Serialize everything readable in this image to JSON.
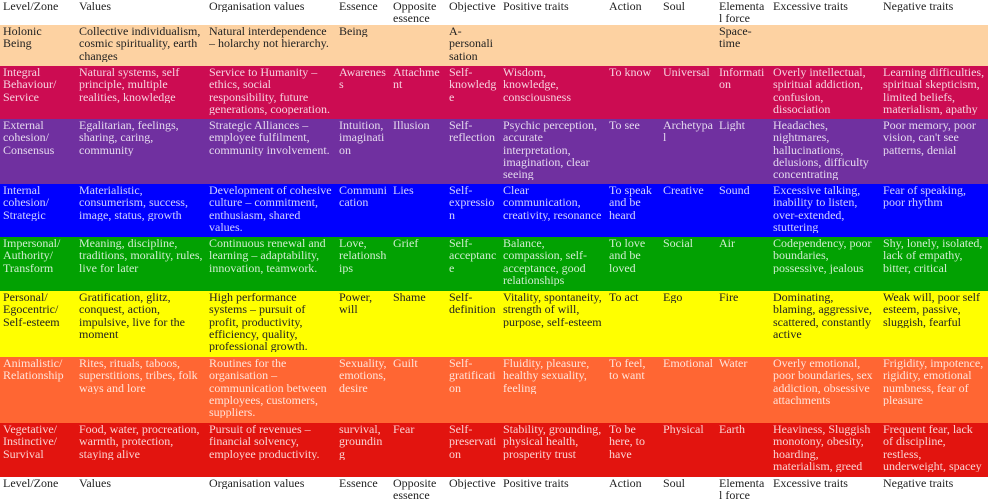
{
  "table": {
    "header": [
      "Level/Zone",
      "Values",
      "Organisation values",
      "Essence",
      "Opposite essence",
      "Objective",
      "Positive traits",
      "Action",
      "Soul",
      "Elemental force",
      "Excessive traits",
      "Negative traits"
    ],
    "rows": [
      [
        "Holonic Being",
        "Collective individualism, cosmic spirituality, earth changes",
        "Natural interdependence – holarchy not hierarchy.",
        "Being",
        null,
        "A-personalisation",
        null,
        null,
        null,
        "Space-time",
        null,
        null
      ],
      [
        "Integral Behaviour/ Service",
        "Natural systems, self principle, multiple realities, knowledge",
        "Service to Humanity – ethics, social responsibility, future generations, cooperation.",
        "Awareness",
        "Attachment",
        "Self-knowledge",
        "Wisdom, knowledge, consciousness",
        "To know",
        "Universal",
        "Information",
        "Overly intellectual, spiritual addiction, confusion, dissociation",
        "Learning difficulties, spiritual skepticism, limited beliefs, materialism, apathy"
      ],
      [
        "External cohesion/ Consensus",
        "Egalitarian, feelings, sharing, caring, community",
        "Strategic Alliances – employee fulfilment, community involvement.",
        "Intuition, imagination",
        "Illusion",
        "Self-reflection",
        "Psychic perception, accurate interpretation, imagination, clear seeing",
        "To see",
        "Archetypal",
        "Light",
        "Headaches, nightmares, hallucinations, delusions, difficulty concentrating",
        "Poor memory, poor vision, can't see patterns, denial"
      ],
      [
        "Internal cohesion/ Strategic",
        "Materialistic, consumerism, success, image, status, growth",
        "Development of cohesive culture – commitment, enthusiasm, shared values.",
        "Communication",
        "Lies",
        "Self-expression",
        "Clear communication, creativity, resonance",
        "To speak and be heard",
        "Creative",
        "Sound",
        "Excessive talking, inability to listen, over-extended, stuttering",
        "Fear of speaking, poor rhythm"
      ],
      [
        "Impersonal/ Authority/ Transform",
        "Meaning, discipline, traditions, morality, rules, live for later",
        "Continuous renewal and learning – adaptability, innovation, teamwork.",
        "Love, relationships",
        "Grief",
        "Self-acceptance",
        "Balance, compassion, self-acceptance, good relationships",
        "To love and be loved",
        "Social",
        "Air",
        "Codependency, poor boundaries, possessive, jealous",
        "Shy, lonely, isolated, lack of empathy, bitter, critical"
      ],
      [
        "Personal/ Egocentric/ Self-esteem",
        "Gratification, glitz, conquest, action, impulsive, live for the moment",
        "High performance systems – pursuit of profit, productivity, efficiency, quality, professional growth.",
        "Power, will",
        "Shame",
        "Self-definition",
        "Vitality, spontaneity, strength of will, purpose, self-esteem",
        "To act",
        "Ego",
        "Fire",
        "Dominating, blaming, aggressive, scattered, constantly active",
        "Weak will, poor self esteem, passive, sluggish, fearful"
      ],
      [
        "Animalistic/ Relationship",
        "Rites, rituals, taboos, superstitions, tribes, folk ways and lore",
        "Routines for the organisation – communication between employees, customers, suppliers.",
        "Sexuality, emotions, desire",
        "Guilt",
        "Self-gratification",
        "Fluidity, pleasure, healthy sexuality, feeling",
        "To feel, to want",
        "Emotional",
        "Water",
        "Overly emotional, poor boundaries, sex addiction, obsessive attachments",
        "Frigidity, impotence, rigidity, emotional numbness, fear of pleasure"
      ],
      [
        "Vegetative/ Instinctive/ Survival",
        "Food, water, procreation, warmth, protection, staying alive",
        "Pursuit of revenues – financial solvency, employee productivity.",
        "survival, grounding",
        "Fear",
        "Self-preservation",
        "Stability, grounding, physical health, prosperity trust",
        "To be here, to have",
        "Physical",
        "Earth",
        "Heaviness, Sluggish monotony, obesity, hoarding, materialism, greed",
        "Frequent fear, lack of discipline, restless, underweight, spacey"
      ]
    ],
    "footer": [
      "Level/Zone",
      "Values",
      "Organisation values",
      "Essence",
      "Opposite essence",
      "Objective",
      "Positive traits",
      "Action",
      "Soul",
      "Elemental force",
      "Excessive traits",
      "Negative traits"
    ]
  }
}
